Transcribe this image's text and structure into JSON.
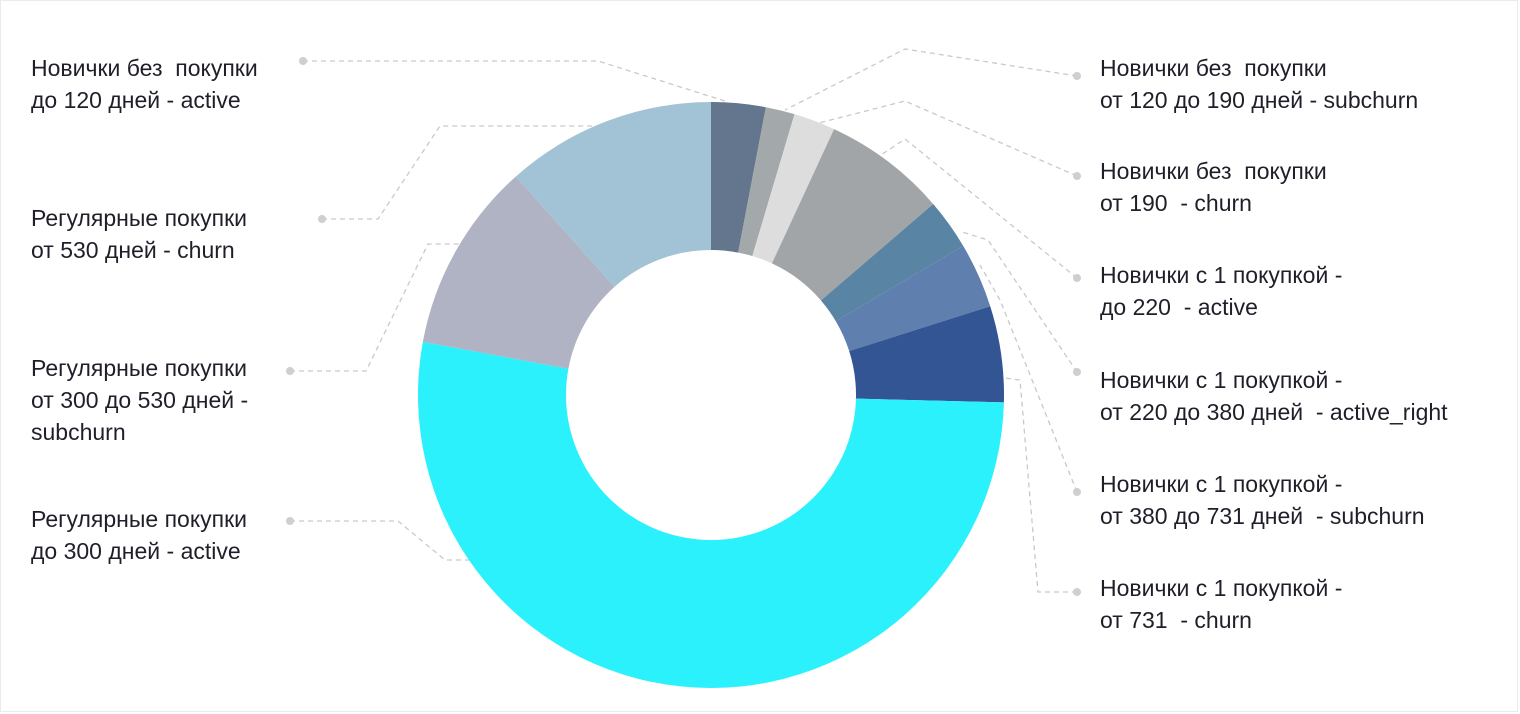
{
  "chart_data": {
    "type": "pie",
    "variant": "donut",
    "categories": [
      [
        "Новички без  покупки",
        "до 120 дней - active"
      ],
      [
        "Новички без  покупки",
        "от 120 до 190 дней - subchurn"
      ],
      [
        "Новички без  покупки",
        "от 190  - churn"
      ],
      [
        "Новички с 1 покупкой -",
        "до 220  - active"
      ],
      [
        "Новички с 1 покупкой -",
        "от 220 до 380 дней  - active_right"
      ],
      [
        "Новички с 1 покупкой -",
        "от 380 до 731 дней  - subchurn"
      ],
      [
        "Новички с 1 покупкой -",
        "от 731  - churn"
      ],
      [
        "Регулярные покупки",
        "до 300 дней - active"
      ],
      [
        "Регулярные покупки",
        "от 300 до 530 дней -",
        "subchurn"
      ],
      [
        "Регулярные покупки",
        "от 530 дней - churn"
      ]
    ],
    "values": [
      3.0,
      1.6,
      2.3,
      6.8,
      2.8,
      3.6,
      5.3,
      52.5,
      10.5,
      11.6
    ],
    "colors": [
      "#64768d",
      "#a3a8aa",
      "#dddddd",
      "#a1a5a7",
      "#5a84a4",
      "#5f7fae",
      "#345594",
      "#2bf1fc",
      "#afb3c3",
      "#a2c3d5"
    ],
    "legend_placement": "around"
  }
}
